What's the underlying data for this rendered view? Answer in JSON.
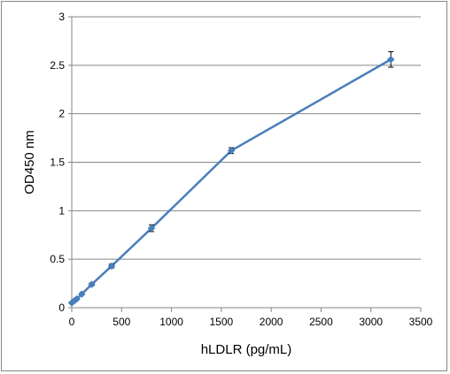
{
  "chart_data": {
    "type": "line",
    "title": "",
    "xlabel": "hLDLR (pg/mL)",
    "ylabel": "OD450 nm",
    "xlim": [
      0,
      3500
    ],
    "ylim": [
      0,
      3
    ],
    "x_ticks": [
      0,
      500,
      1000,
      1500,
      2000,
      2500,
      3000,
      3500
    ],
    "x_tick_labels": [
      "0",
      "500",
      "1000",
      "1500",
      "2000",
      "2500",
      "3000",
      "3500"
    ],
    "y_ticks": [
      0,
      0.5,
      1,
      1.5,
      2,
      2.5,
      3
    ],
    "y_tick_labels": [
      "0",
      "0.5",
      "1",
      "1.5",
      "2",
      "2.5",
      "3"
    ],
    "grid": "horizontal",
    "legend": "none",
    "series": [
      {
        "color": "#4a7ebb",
        "marker": "diamond",
        "points": [
          {
            "x": 0,
            "y": 0.05,
            "err": 0.01
          },
          {
            "x": 25,
            "y": 0.07,
            "err": 0.01
          },
          {
            "x": 50,
            "y": 0.09,
            "err": 0.01
          },
          {
            "x": 100,
            "y": 0.14,
            "err": 0.01
          },
          {
            "x": 200,
            "y": 0.24,
            "err": 0.015
          },
          {
            "x": 400,
            "y": 0.43,
            "err": 0.02
          },
          {
            "x": 800,
            "y": 0.82,
            "err": 0.035
          },
          {
            "x": 1600,
            "y": 1.62,
            "err": 0.03
          },
          {
            "x": 3200,
            "y": 2.56,
            "err": 0.08
          }
        ]
      }
    ]
  }
}
